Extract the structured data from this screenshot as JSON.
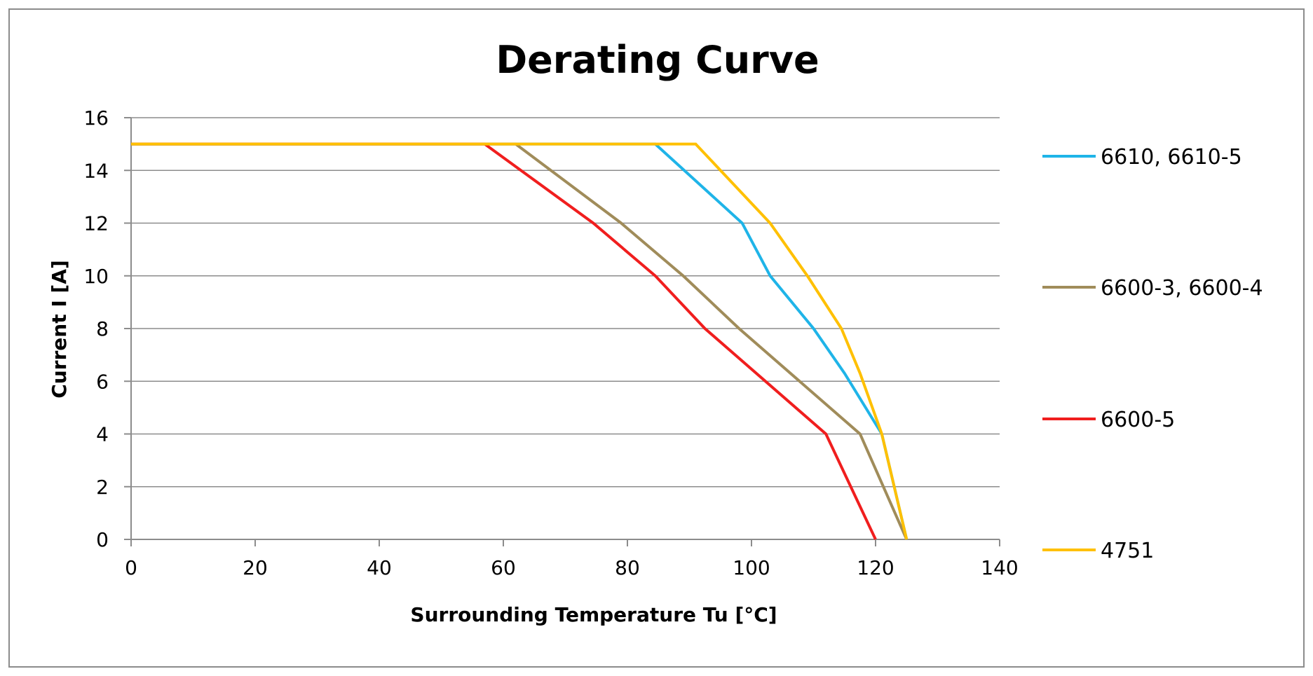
{
  "chart_data": {
    "type": "line",
    "title": "Derating Curve",
    "xlabel": "Surrounding Temperature Tu [°C]",
    "ylabel": "Current I [A]",
    "xlim": [
      0,
      140
    ],
    "ylim": [
      0,
      16
    ],
    "x_ticks": [
      0,
      20,
      40,
      60,
      80,
      100,
      120,
      140
    ],
    "y_ticks": [
      0,
      2,
      4,
      6,
      8,
      10,
      12,
      14,
      16
    ],
    "grid": "horizontal",
    "legend_position": "right",
    "series": [
      {
        "name": "6610, 6610-5",
        "color": "#1fb4e8",
        "points": [
          [
            0,
            15
          ],
          [
            84.5,
            15
          ],
          [
            98.5,
            12
          ],
          [
            103,
            10
          ],
          [
            110,
            8
          ],
          [
            115,
            6.3
          ],
          [
            121,
            4
          ],
          [
            125,
            0
          ]
        ]
      },
      {
        "name": "6600-3, 6600-4",
        "color": "#a08c5a",
        "points": [
          [
            0,
            15
          ],
          [
            62,
            15
          ],
          [
            79,
            12
          ],
          [
            89,
            10
          ],
          [
            98,
            8
          ],
          [
            117.5,
            4
          ],
          [
            125,
            0
          ]
        ]
      },
      {
        "name": "6600-5",
        "color": "#f01e1e",
        "points": [
          [
            0,
            15
          ],
          [
            57,
            15
          ],
          [
            74.5,
            12
          ],
          [
            84.5,
            10
          ],
          [
            92.5,
            8
          ],
          [
            112,
            4
          ],
          [
            120,
            0
          ]
        ]
      },
      {
        "name": "4751",
        "color": "#ffc000",
        "points": [
          [
            0,
            15
          ],
          [
            91,
            15
          ],
          [
            103,
            12
          ],
          [
            109,
            10
          ],
          [
            114.5,
            8
          ],
          [
            117.5,
            6.3
          ],
          [
            121,
            4
          ],
          [
            125,
            0
          ]
        ]
      }
    ]
  }
}
